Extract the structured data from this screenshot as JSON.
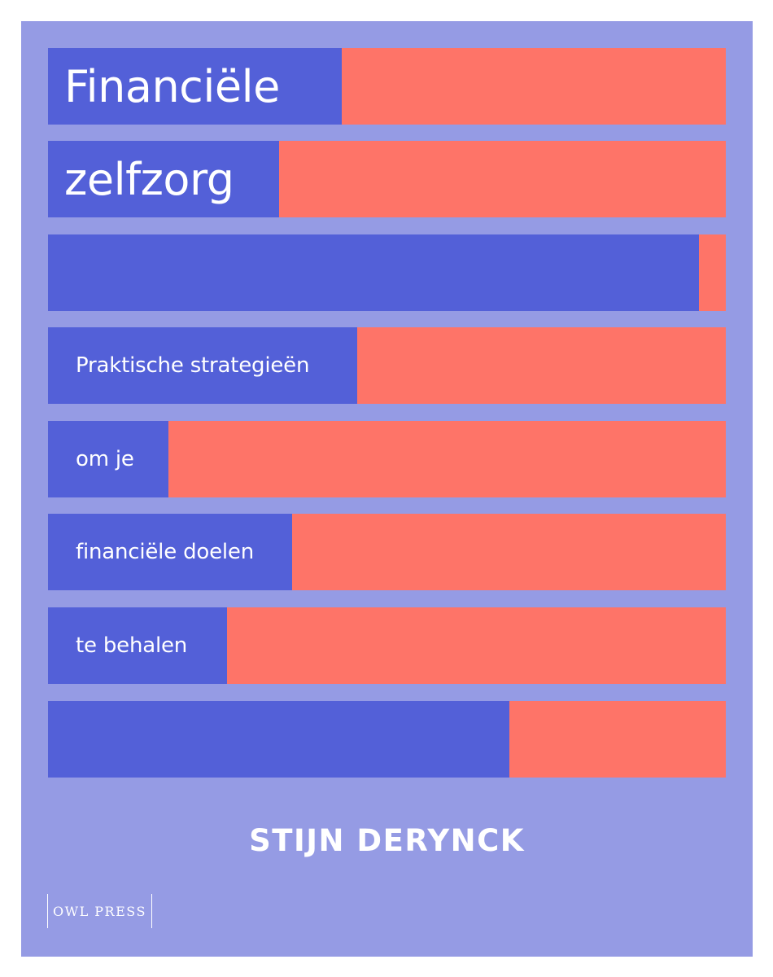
{
  "cover": {
    "title_line_1": "Financiële",
    "title_line_2": "zelfzorg",
    "subtitle_line_1": "Praktische strategieën",
    "subtitle_line_2": "om je",
    "subtitle_line_3": "financiële doelen",
    "subtitle_line_4": "te behalen",
    "author": "STIJN DERYNCK",
    "publisher": "OWL PRESS"
  },
  "colors": {
    "background": "#959be4",
    "bar_fill": "#5360d8",
    "bar_remainder": "#fe7468",
    "text": "#ffffff"
  }
}
